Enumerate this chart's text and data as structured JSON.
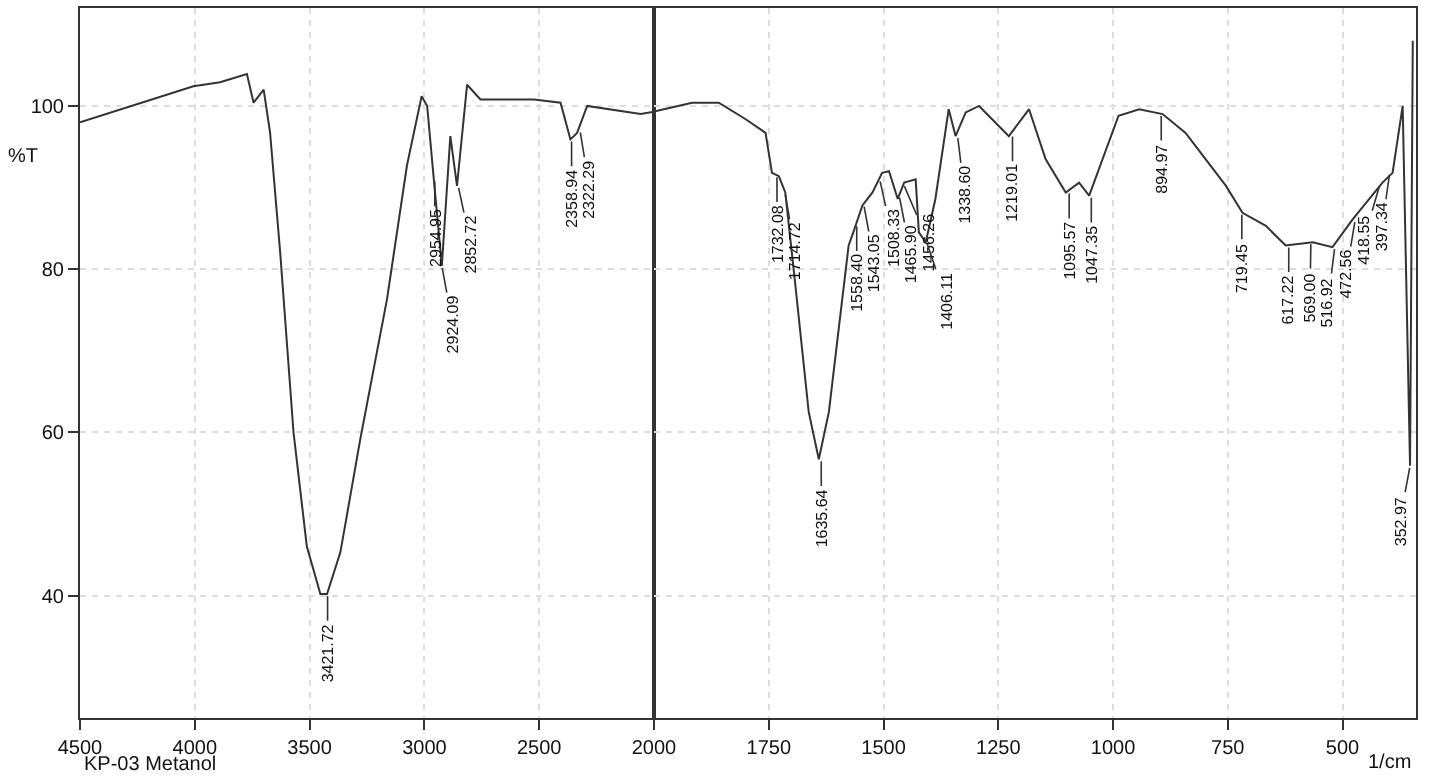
{
  "chart_data": [
    {
      "type": "line",
      "ylabel": "%T",
      "xlim": [
        4500,
        2000
      ],
      "xticks": [
        4500,
        4000,
        3500,
        3000,
        2500,
        2000
      ],
      "ylim": [
        25,
        112
      ],
      "yticks": [
        40,
        60,
        80,
        100
      ],
      "grid": true,
      "marker": "none",
      "series": [
        {
          "color": "#333333",
          "x": [
            4500,
            4006,
            3890,
            3773,
            3744,
            3700,
            3672,
            3628,
            3570,
            3512,
            3453,
            3424,
            3366,
            3279,
            3163,
            3076,
            3012,
            2988,
            2959,
            2924,
            2887,
            2858,
            2814,
            2756,
            2523,
            2407,
            2364,
            2335,
            2291,
            2058,
            2000
          ],
          "values": [
            98,
            102.4,
            102.9,
            103.9,
            100.4,
            102,
            96.7,
            82,
            60,
            46,
            40.2,
            40.2,
            45.3,
            59.2,
            76.3,
            92.7,
            101.2,
            100,
            91,
            80.4,
            96.3,
            90.2,
            102.6,
            100.8,
            100.8,
            100.4,
            95.9,
            96.7,
            100,
            99,
            99.3
          ]
        }
      ],
      "annotations": [
        "KP-03 Metanol",
        {
          "text": "3421.72",
          "x": 3421.72,
          "y": 40.2
        },
        {
          "text": "2954.95",
          "x": 2954.95,
          "y": 91
        },
        {
          "text": "2924.09",
          "x": 2924.09,
          "y": 80.4
        },
        {
          "text": "2852.72",
          "x": 2852.72,
          "y": 90.2
        },
        {
          "text": "2358.94",
          "x": 2358.94,
          "y": 95.9
        },
        {
          "text": "2322.29",
          "x": 2322.29,
          "y": 97
        }
      ]
    },
    {
      "type": "line",
      "xlabel": "1/cm",
      "xlim": [
        2000,
        340
      ],
      "xticks": [
        1750,
        1500,
        1250,
        1000,
        750,
        500
      ],
      "ylim": [
        25,
        112
      ],
      "yticks": [
        40,
        60,
        80,
        100
      ],
      "grid": true,
      "marker": "none",
      "tick_labels": "x",
      "series": [
        {
          "color": "#333333",
          "x": [
            2000,
            1917,
            1859,
            1801,
            1757,
            1743,
            1728,
            1714,
            1692,
            1663,
            1641,
            1619,
            1597,
            1576,
            1561,
            1546,
            1524,
            1503,
            1488,
            1469,
            1455,
            1430,
            1423,
            1408,
            1387,
            1358,
            1343,
            1321,
            1292,
            1227,
            1183,
            1147,
            1103,
            1074,
            1052,
            988,
            943,
            892,
            842,
            754,
            718,
            667,
            624,
            565,
            522,
            478,
            413,
            391,
            369,
            353,
            347
          ],
          "values": [
            99.3,
            100.4,
            100.4,
            98.4,
            96.7,
            91.8,
            91.4,
            89.4,
            78,
            62.5,
            56.7,
            62.5,
            73,
            82.9,
            85.3,
            87.8,
            89.4,
            91.8,
            92,
            88.6,
            90.6,
            91,
            84.5,
            83.3,
            88.6,
            99.6,
            96.3,
            99.2,
            100,
            96.3,
            99.6,
            93.5,
            89.4,
            90.6,
            89,
            98.8,
            99.6,
            99,
            96.7,
            90.2,
            86.9,
            85.3,
            82.9,
            83.3,
            82.7,
            86.1,
            90.6,
            91.8,
            100,
            55.9,
            108
          ]
        }
      ],
      "annotations": [
        {
          "text": "1732.08",
          "x": 1732.08,
          "y": 91.5
        },
        {
          "text": "1714.72",
          "x": 1714.72,
          "y": 89.4
        },
        {
          "text": "1635.64",
          "x": 1635.64,
          "y": 56.7
        },
        {
          "text": "1558.40",
          "x": 1558.4,
          "y": 85.5
        },
        {
          "text": "1543.05",
          "x": 1543.05,
          "y": 87.9
        },
        {
          "text": "1508.33",
          "x": 1508.33,
          "y": 91
        },
        {
          "text": "1465.90",
          "x": 1465.9,
          "y": 89
        },
        {
          "text": "1456.26",
          "x": 1456.26,
          "y": 90.4
        },
        {
          "text": "1406.11",
          "x": 1406.11,
          "y": 83.3
        },
        {
          "text": "1338.60",
          "x": 1338.6,
          "y": 96.3
        },
        {
          "text": "1219.01",
          "x": 1219.01,
          "y": 96.5
        },
        {
          "text": "1095.57",
          "x": 1095.57,
          "y": 89.5
        },
        {
          "text": "1047.35",
          "x": 1047.35,
          "y": 89
        },
        {
          "text": "894.97",
          "x": 894.97,
          "y": 99
        },
        {
          "text": "719.45",
          "x": 719.45,
          "y": 86.9
        },
        {
          "text": "617.22",
          "x": 617.22,
          "y": 82.9
        },
        {
          "text": "569.00",
          "x": 569,
          "y": 83.3
        },
        {
          "text": "516.92",
          "x": 516.92,
          "y": 82.7
        },
        {
          "text": "472.56",
          "x": 472.56,
          "y": 86
        },
        {
          "text": "418.55",
          "x": 418.55,
          "y": 90.4
        },
        {
          "text": "397.34",
          "x": 397.34,
          "y": 91.8
        },
        {
          "text": "352.97",
          "x": 352.97,
          "y": 55.9
        }
      ]
    }
  ]
}
